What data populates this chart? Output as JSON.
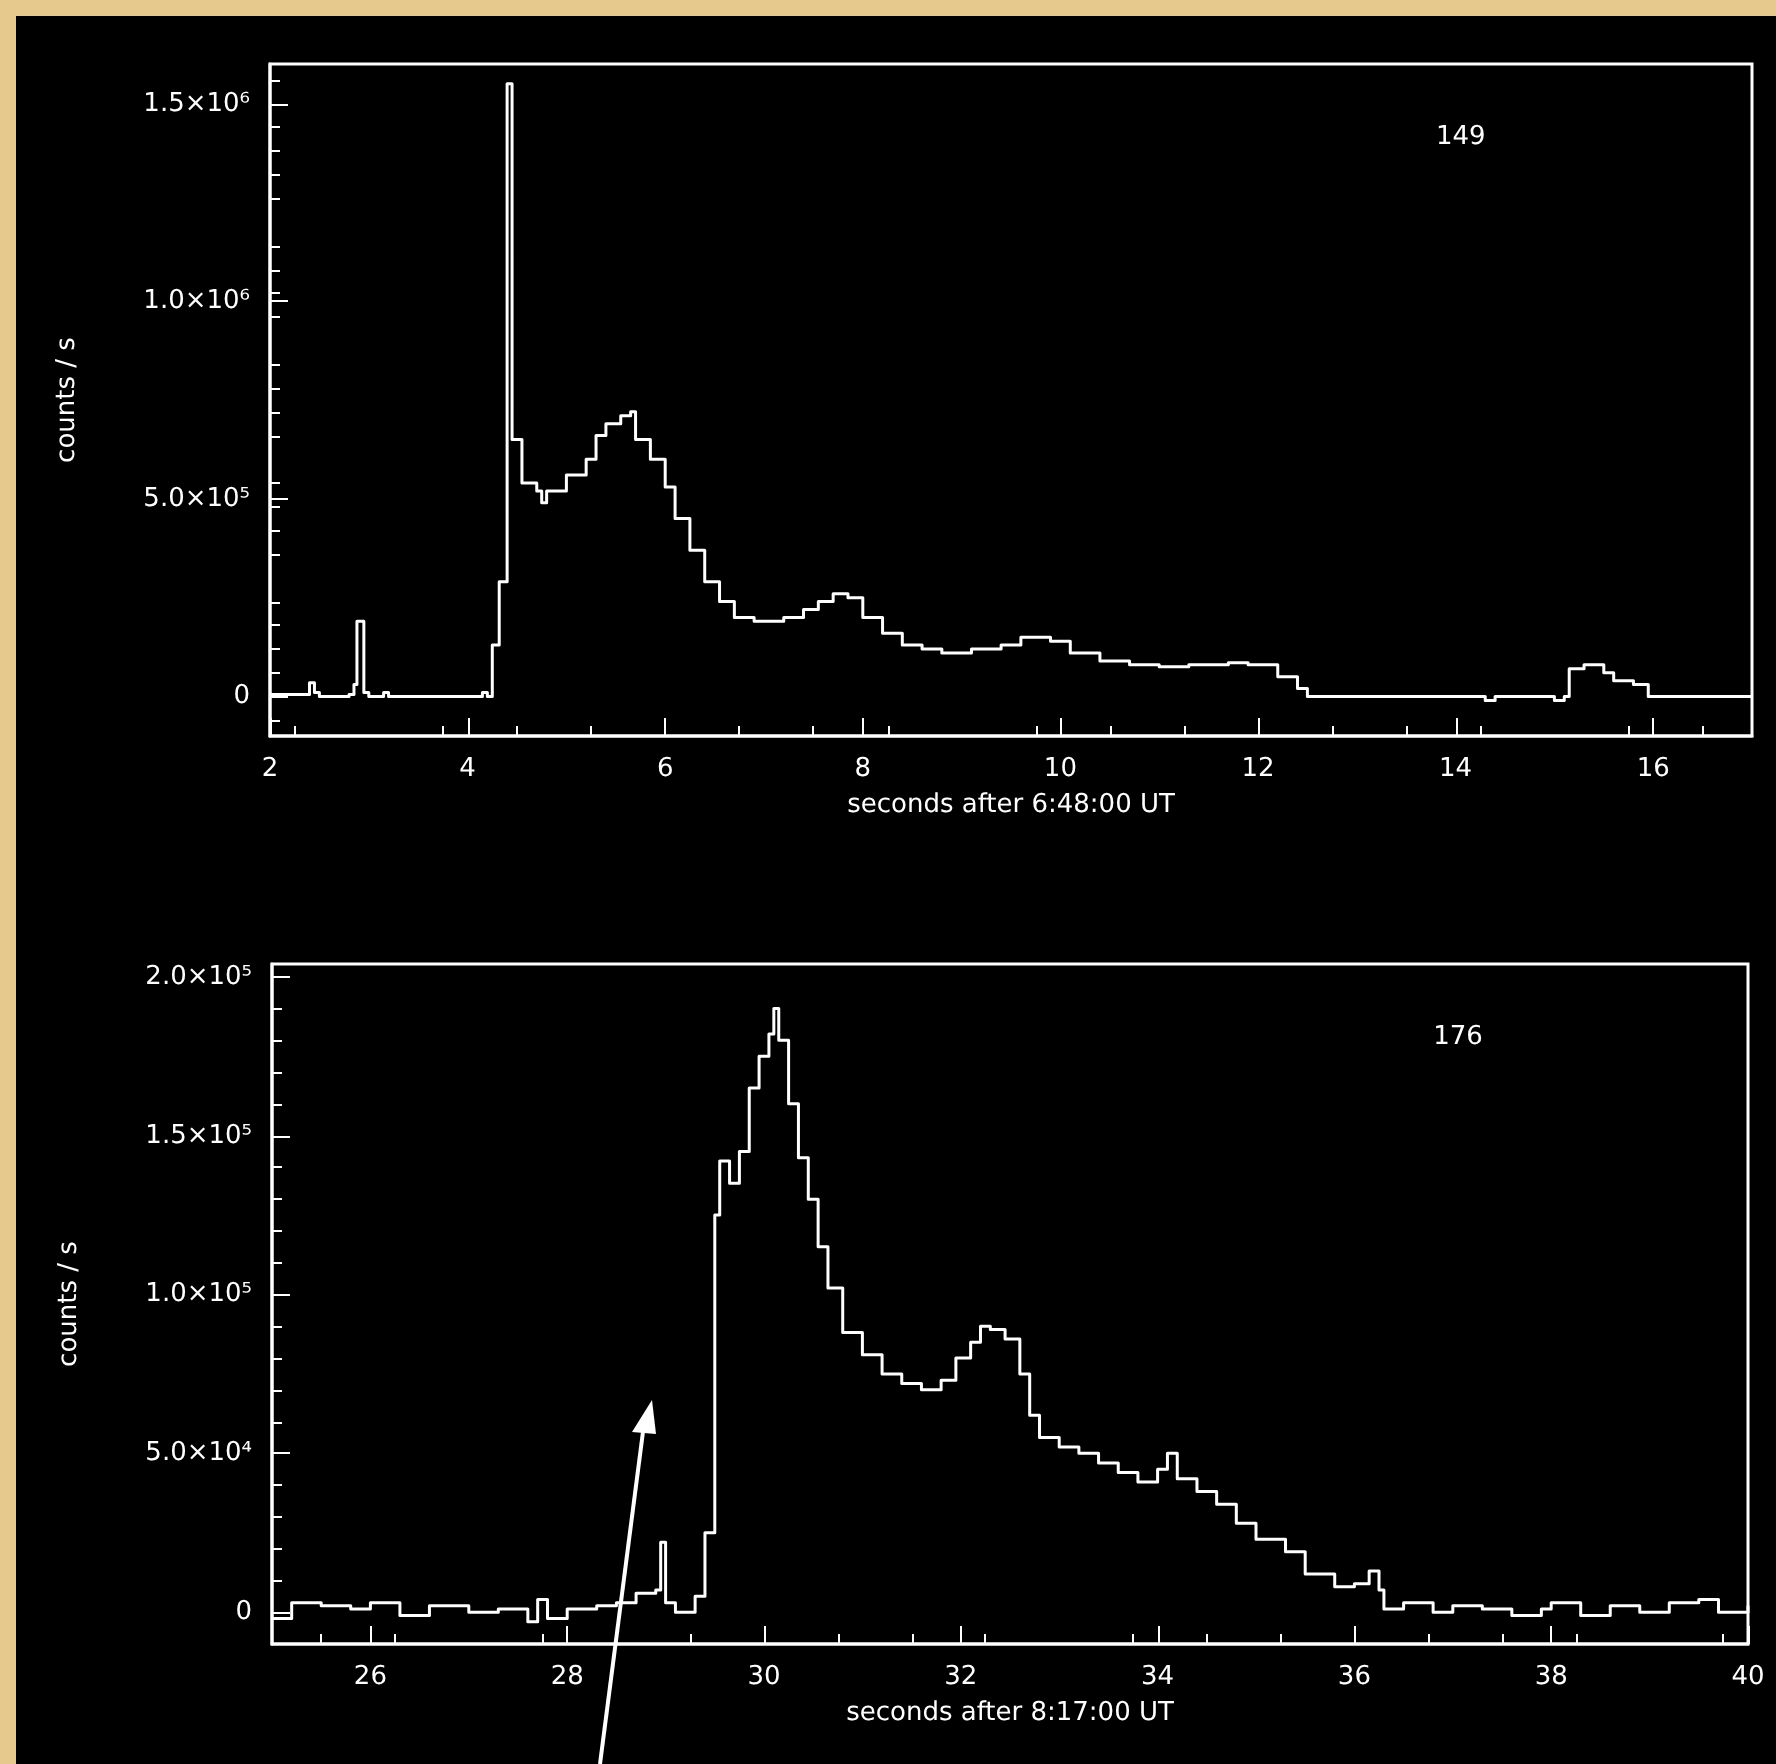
{
  "chart_data": [
    {
      "type": "step",
      "xlabel": "seconds after 6:48:00 UT",
      "ylabel": "counts / s",
      "annotations": [
        "149"
      ],
      "xlim": [
        2,
        17
      ],
      "xticks": [
        2,
        4,
        6,
        8,
        10,
        12,
        14,
        16
      ],
      "ylim": [
        -100000,
        1600000
      ],
      "yticks": [
        {
          "value": 0,
          "label": "0"
        },
        {
          "value": 500000,
          "label": "5.0×10⁵"
        },
        {
          "value": 1000000,
          "label": "1.0×10⁶"
        },
        {
          "value": 1500000,
          "label": "1.5×10⁶"
        }
      ],
      "grid": false,
      "marker": "none",
      "line_style": "solid",
      "series": [
        {
          "color": "#ffffff",
          "x": [
            2.0,
            2.35,
            2.4,
            2.45,
            2.5,
            2.8,
            2.85,
            2.88,
            2.95,
            3.0,
            3.15,
            3.2,
            4.1,
            4.15,
            4.2,
            4.25,
            4.32,
            4.4,
            4.45,
            4.55,
            4.7,
            4.75,
            4.8,
            4.9,
            5.0,
            5.1,
            5.2,
            5.3,
            5.4,
            5.55,
            5.65,
            5.7,
            5.85,
            6.0,
            6.1,
            6.25,
            6.4,
            6.55,
            6.7,
            6.9,
            7.0,
            7.2,
            7.4,
            7.55,
            7.7,
            7.85,
            8.0,
            8.2,
            8.4,
            8.6,
            8.8,
            9.1,
            9.4,
            9.6,
            9.9,
            10.1,
            10.4,
            10.7,
            11.0,
            11.3,
            11.7,
            11.9,
            12.2,
            12.4,
            12.5,
            14.2,
            14.3,
            14.4,
            14.9,
            15.0,
            15.1,
            15.15,
            15.3,
            15.5,
            15.6,
            15.8,
            15.95,
            17.0
          ],
          "values": [
            5000,
            5000,
            35000,
            10000,
            0,
            5000,
            30000,
            190000,
            10000,
            0,
            10000,
            0,
            0,
            10000,
            0,
            130000,
            290000,
            1550000,
            650000,
            540000,
            520000,
            490000,
            520000,
            520000,
            560000,
            560000,
            600000,
            660000,
            690000,
            710000,
            720000,
            650000,
            600000,
            530000,
            450000,
            370000,
            290000,
            240000,
            200000,
            190000,
            190000,
            200000,
            220000,
            240000,
            260000,
            250000,
            200000,
            160000,
            130000,
            120000,
            110000,
            120000,
            130000,
            150000,
            140000,
            110000,
            90000,
            80000,
            75000,
            80000,
            85000,
            80000,
            50000,
            20000,
            0,
            0,
            -10000,
            0,
            0,
            -10000,
            0,
            70000,
            80000,
            60000,
            40000,
            30000,
            0,
            0
          ]
        }
      ]
    },
    {
      "type": "step",
      "xlabel": "seconds after 8:17:00 UT",
      "ylabel": "counts / s",
      "annotations": [
        "176"
      ],
      "xlim": [
        25,
        40
      ],
      "xticks": [
        26,
        28,
        30,
        32,
        34,
        36,
        38,
        40
      ],
      "ylim": [
        -10000,
        204000
      ],
      "yticks": [
        {
          "value": 0,
          "label": "0"
        },
        {
          "value": 50000,
          "label": "5.0×10⁴"
        },
        {
          "value": 100000,
          "label": "1.0×10⁵"
        },
        {
          "value": 150000,
          "label": "1.5×10⁵"
        },
        {
          "value": 200000,
          "label": "2.0×10⁵"
        }
      ],
      "grid": false,
      "marker": "none",
      "line_style": "solid",
      "series": [
        {
          "color": "#ffffff",
          "x": [
            25.0,
            25.2,
            25.5,
            25.8,
            26.0,
            26.3,
            26.6,
            27.0,
            27.3,
            27.6,
            27.7,
            27.8,
            28.0,
            28.3,
            28.5,
            28.7,
            28.9,
            28.95,
            29.0,
            29.1,
            29.3,
            29.4,
            29.5,
            29.55,
            29.65,
            29.75,
            29.85,
            29.95,
            30.05,
            30.1,
            30.15,
            30.25,
            30.35,
            30.45,
            30.55,
            30.65,
            30.8,
            31.0,
            31.2,
            31.4,
            31.6,
            31.8,
            31.95,
            32.1,
            32.2,
            32.3,
            32.45,
            32.6,
            32.7,
            32.8,
            33.0,
            33.2,
            33.4,
            33.6,
            33.8,
            34.0,
            34.1,
            34.2,
            34.4,
            34.6,
            34.8,
            35.0,
            35.3,
            35.5,
            35.8,
            36.0,
            36.15,
            36.25,
            36.3,
            36.5,
            36.8,
            37.0,
            37.3,
            37.6,
            37.9,
            38.0,
            38.3,
            38.6,
            38.9,
            39.2,
            39.5,
            39.7,
            40.0
          ],
          "values": [
            -2000,
            3000,
            2000,
            1000,
            3000,
            -1000,
            2000,
            0,
            1000,
            -3000,
            4000,
            -2000,
            1000,
            2000,
            3000,
            6000,
            7000,
            22000,
            3000,
            0,
            5000,
            25000,
            125000,
            142000,
            135000,
            145000,
            165000,
            175000,
            182000,
            190000,
            180000,
            160000,
            143000,
            130000,
            115000,
            102000,
            88000,
            81000,
            75000,
            72000,
            70000,
            73000,
            80000,
            85000,
            90000,
            89000,
            86000,
            75000,
            62000,
            55000,
            52000,
            50000,
            47000,
            44000,
            41000,
            45000,
            50000,
            42000,
            38000,
            34000,
            28000,
            23000,
            19000,
            12000,
            8000,
            9000,
            13000,
            7000,
            1000,
            3000,
            0,
            2000,
            1000,
            -1000,
            1000,
            3000,
            -1000,
            2000,
            0,
            3000,
            4000,
            0,
            2000
          ]
        }
      ]
    }
  ]
}
